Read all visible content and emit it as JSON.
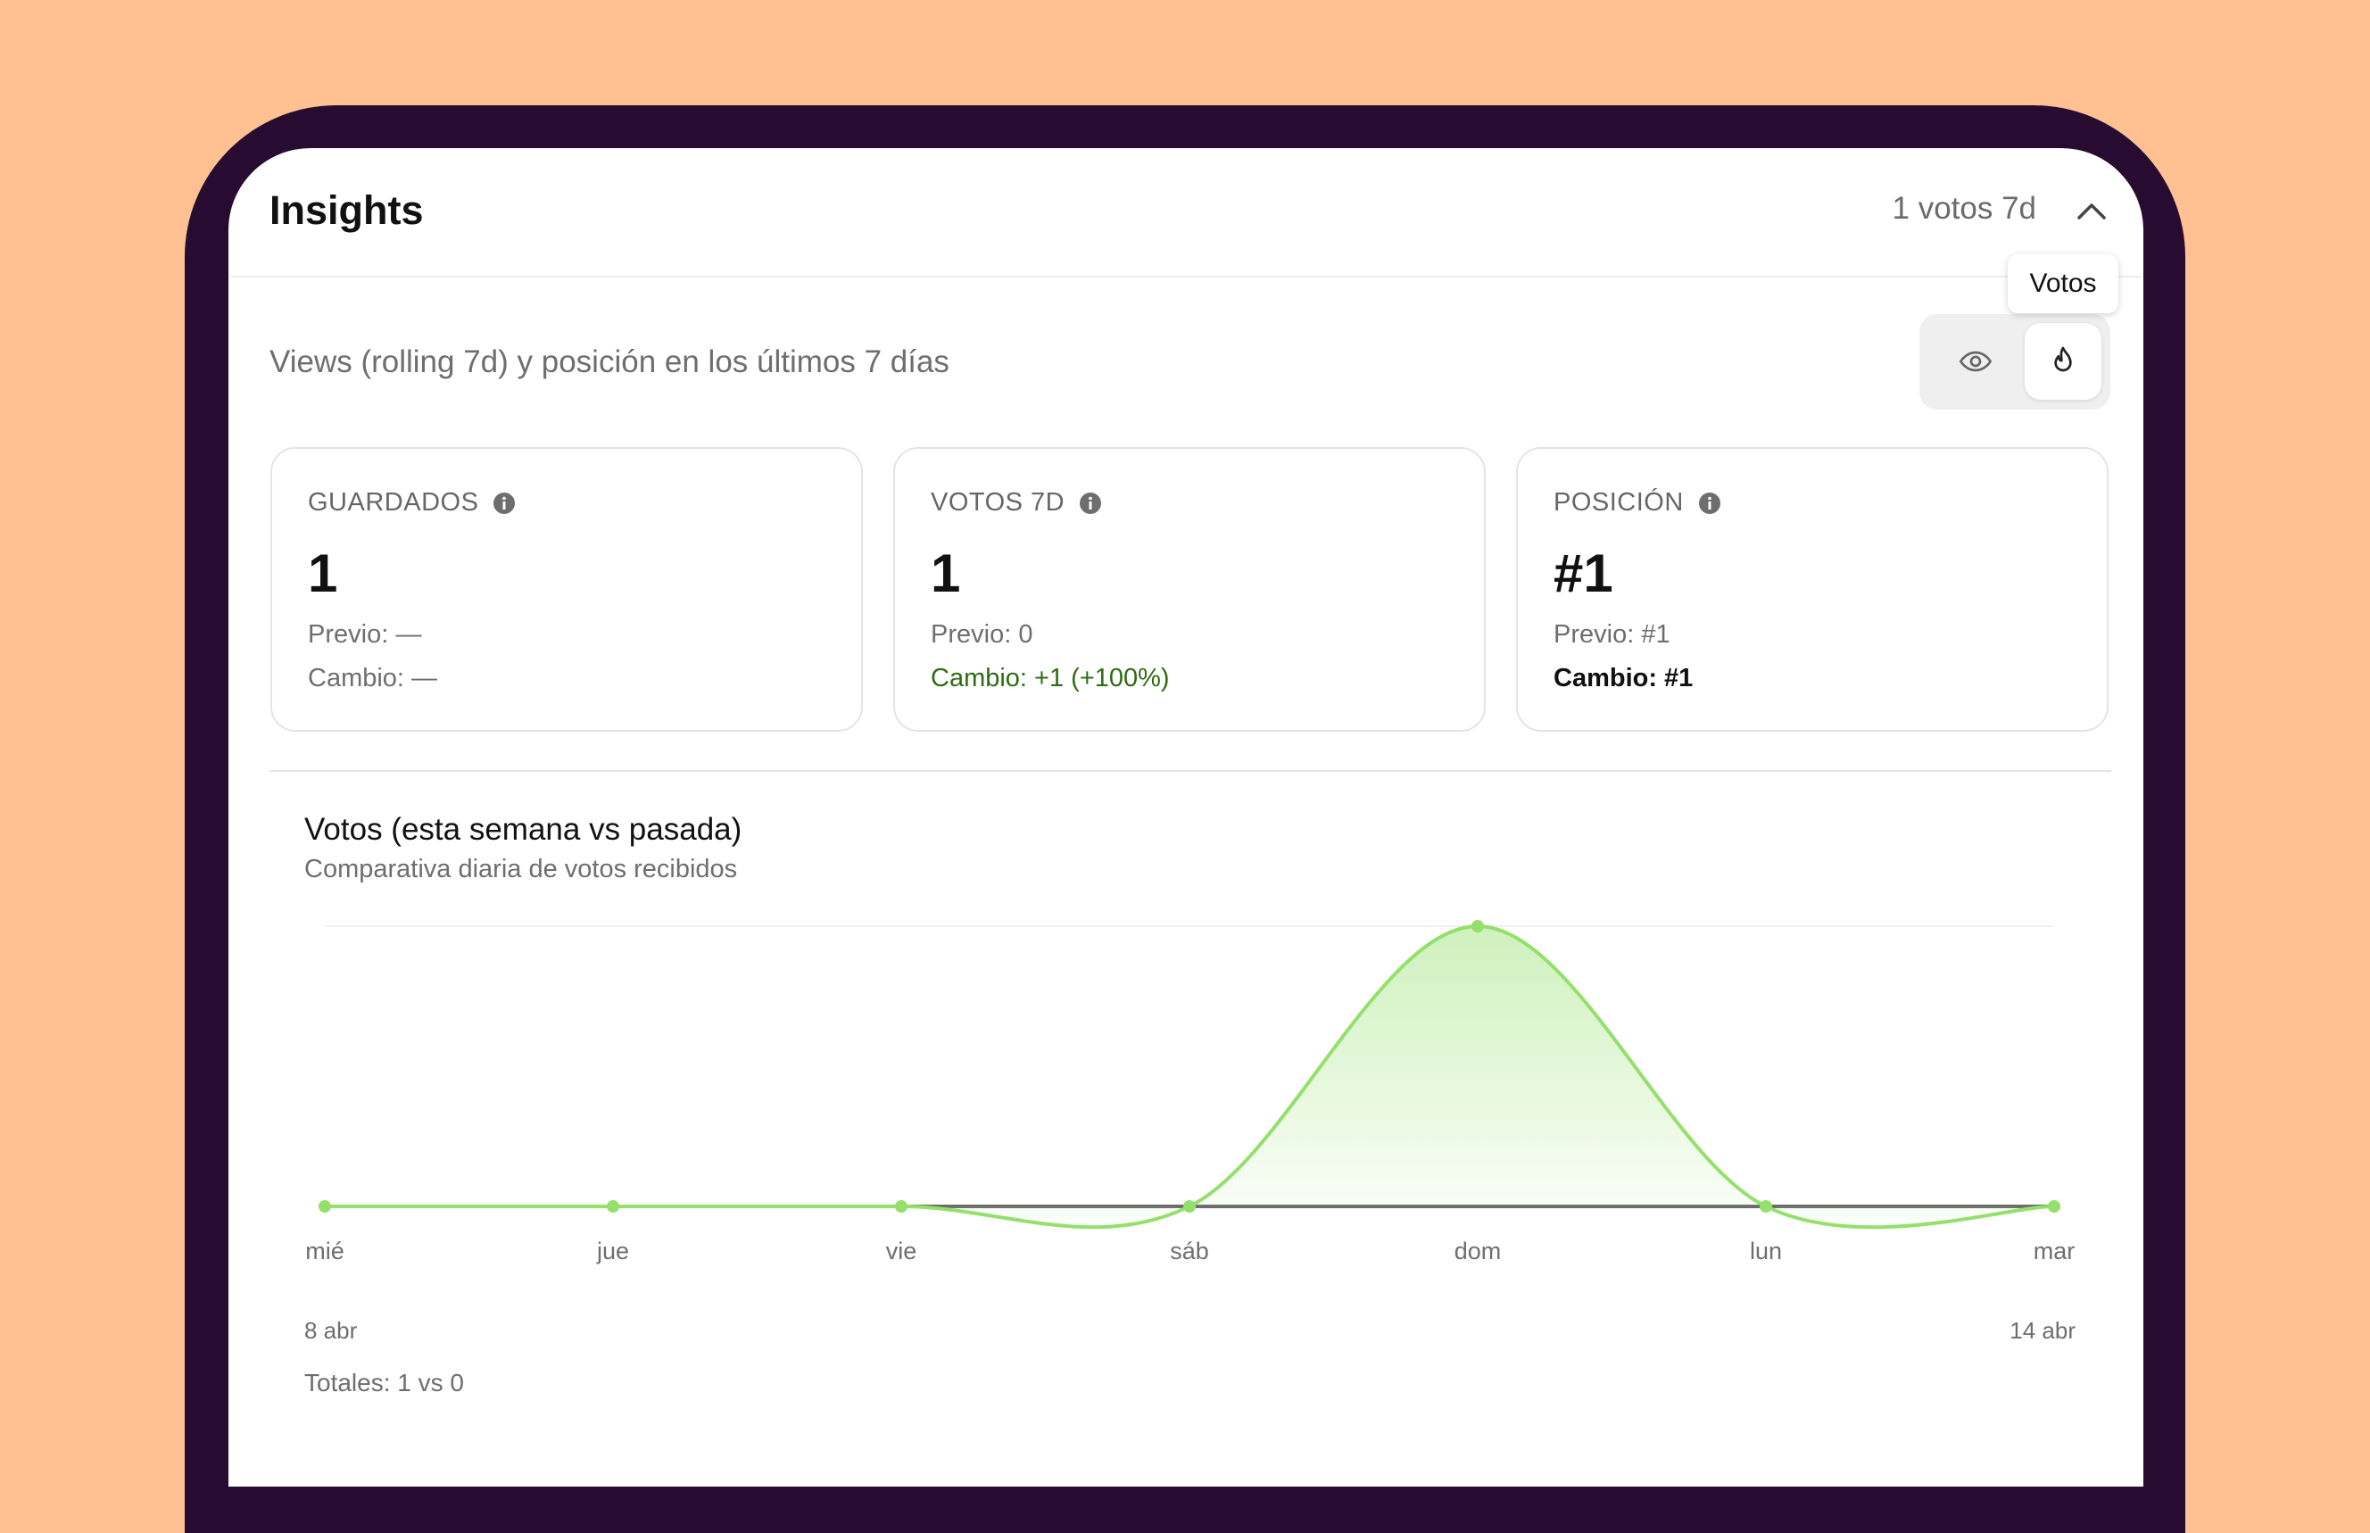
{
  "header": {
    "title": "Insights",
    "summary": "1 votos 7d"
  },
  "tooltip": "Votos",
  "subtitle": "Views (rolling 7d) y posición en los últimos 7 días",
  "cards": [
    {
      "label": "GUARDADOS",
      "value": "1",
      "previous": "Previo: —",
      "change": "Cambio: —"
    },
    {
      "label": "VOTOS 7D",
      "value": "1",
      "previous": "Previo: 0",
      "change": "Cambio: +1 (+100%)"
    },
    {
      "label": "POSICIÓN",
      "value": "#1",
      "previous": "Previo: #1",
      "change": "Cambio: #1"
    }
  ],
  "chart": {
    "type": "line",
    "title": "Votos (esta semana vs pasada)",
    "subtitle": "Comparativa diaria de votos recibidos",
    "categories": [
      "mié",
      "jue",
      "vie",
      "sáb",
      "dom",
      "lun",
      "mar"
    ],
    "series": [
      {
        "color": "#93e06b",
        "values": [
          0,
          0,
          0,
          0,
          1,
          0,
          0
        ]
      },
      {
        "color": "#6b6b6b",
        "values": [
          0,
          0,
          0,
          0,
          0,
          0,
          0
        ]
      }
    ],
    "date_start": "8 abr",
    "date_end": "14 abr",
    "totals": "Totales: 1 vs 0"
  }
}
